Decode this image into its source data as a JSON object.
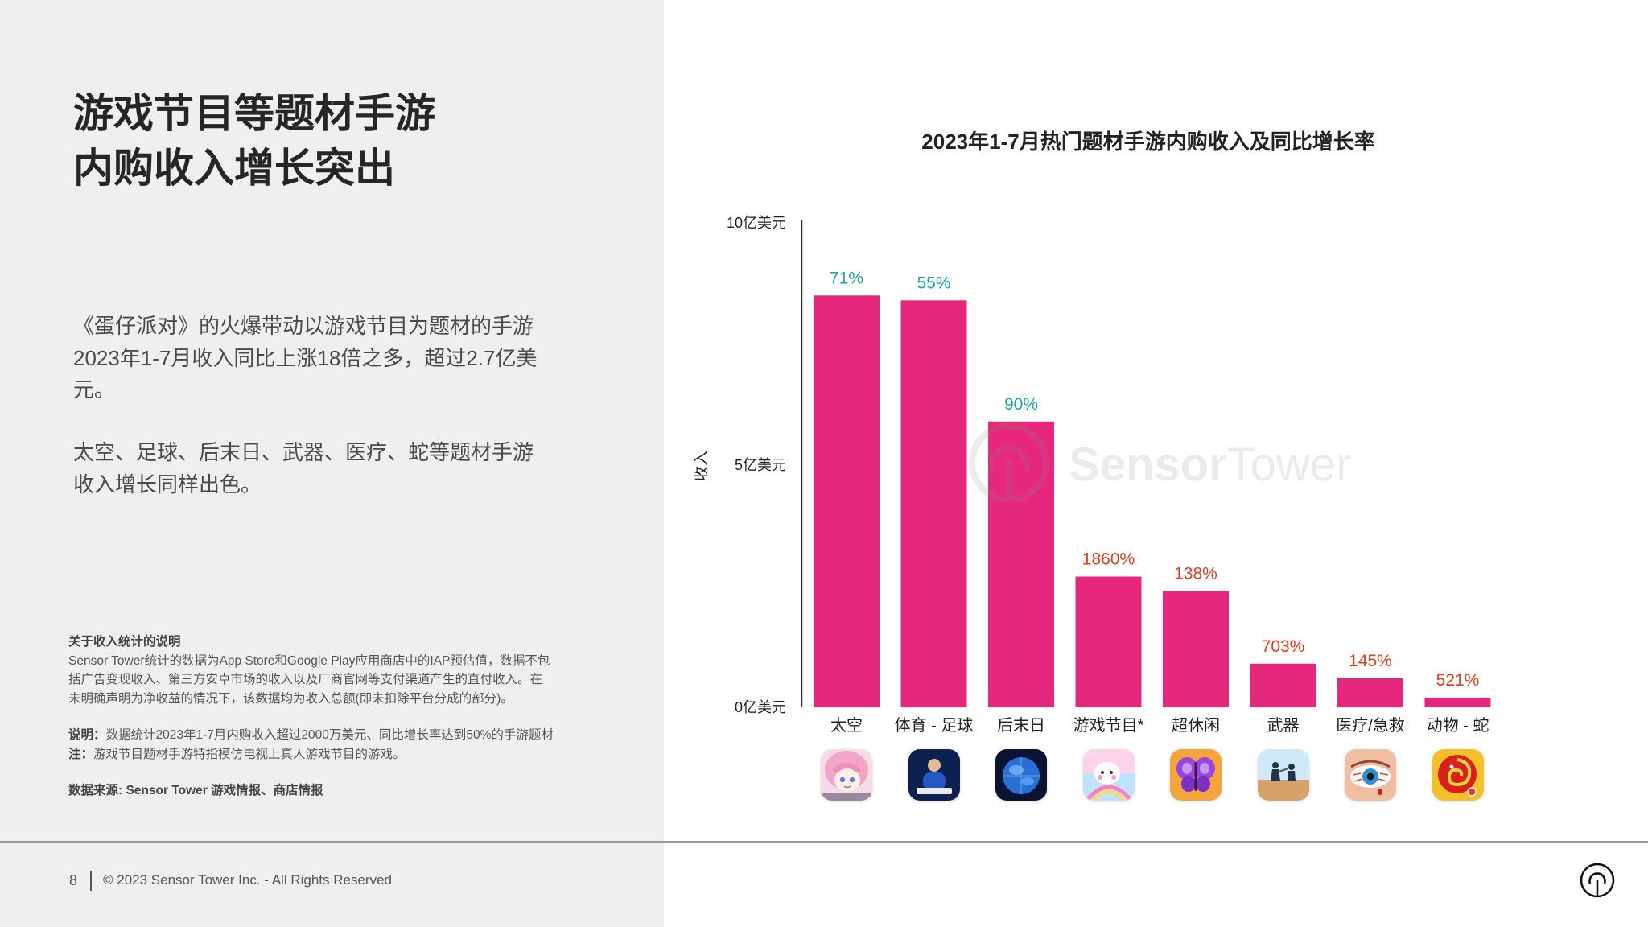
{
  "title": {
    "lines": [
      "游戏节目等题材手游",
      "内购收入增长突出"
    ]
  },
  "paragraphs": [
    {
      "lines": [
        "《蛋仔派对》的火爆带动以游戏节目为题材的手游",
        "2023年1-7月收入同比上涨18倍之多，超过2.7亿美",
        "元。"
      ]
    },
    {
      "lines": [
        "太空、足球、后末日、武器、医疗、蛇等题材手游",
        "收入增长同样出色。"
      ]
    }
  ],
  "notes": {
    "heading": "关于收入统计的说明",
    "body_lines": [
      "Sensor Tower统计的数据为App Store和Google Play应用商店中的IAP预估值，数据不包",
      "括广告变现收入、第三方安卓市场的收入以及厂商官网等支付渠道产生的直付收入。在",
      "未明确声明为净收益的情况下，该数据均为收入总额(即未扣除平台分成的部分)。"
    ],
    "explanation_label": "说明：",
    "explanation_text": "数据统计2023年1-7月内购收入超过2000万美元、同比增长率达到50%的手游题材",
    "note_label": "注：",
    "note_text": "游戏节目题材手游特指模仿电视上真人游戏节目的游戏。",
    "source": "数据来源: Sensor Tower 游戏情报、商店情报"
  },
  "chart_data": {
    "type": "bar",
    "title": "2023年1-7月热门题材手游内购收入及同比增长率",
    "xlabel": "",
    "ylabel": "收入",
    "categories": [
      "太空",
      "体育 - 足球",
      "后末日",
      "游戏节目*",
      "超休闲",
      "武器",
      "医疗/急救",
      "动物 - 蛇"
    ],
    "values": [
      8.5,
      8.4,
      5.9,
      2.7,
      2.4,
      0.9,
      0.6,
      0.2
    ],
    "ylim": [
      0,
      10
    ],
    "yticks": [
      0,
      5,
      10
    ],
    "ytick_labels": [
      "0亿美元",
      "5亿美元",
      "10亿美元"
    ],
    "data_labels": [
      "71%",
      "55%",
      "90%",
      "1860%",
      "138%",
      "703%",
      "145%",
      "521%"
    ],
    "data_label_colors": [
      "#1ea59c",
      "#1ea59c",
      "#1ea59c",
      "#e23b1e",
      "#e23b1e",
      "#e23b1e",
      "#e23b1e",
      "#e23b1e"
    ],
    "bar_color": "#e5287b",
    "grid": false,
    "legend": "none"
  },
  "app_icons": [
    {
      "name": "anime-girl-app-icon"
    },
    {
      "name": "football-player-app-icon"
    },
    {
      "name": "globe-app-icon"
    },
    {
      "name": "party-game-character-app-icon"
    },
    {
      "name": "butterfly-app-icon"
    },
    {
      "name": "fighting-figures-app-icon"
    },
    {
      "name": "injured-eye-app-icon"
    },
    {
      "name": "snake-ball-app-icon"
    }
  ],
  "watermark": {
    "brand_bold": "Sensor",
    "brand_light": "Tower",
    "icon": "sensor-tower-logo-icon"
  },
  "footer": {
    "page_number": "8",
    "copyright": "© 2023 Sensor Tower Inc. - All Rights Reserved",
    "logo_icon": "sensor-tower-logo-icon"
  },
  "colors": {
    "panel_bg": "#efefef",
    "bar": "#e5287b",
    "growth_teal": "#1ea59c",
    "growth_red": "#e23b1e"
  }
}
